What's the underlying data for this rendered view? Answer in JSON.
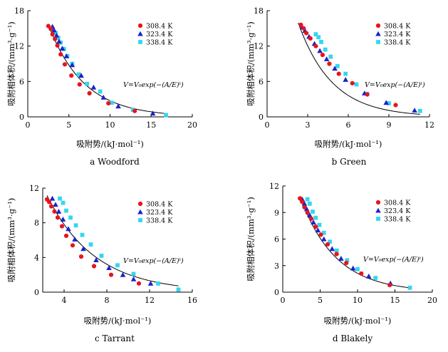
{
  "figure": {
    "ylabel": "吸附相体积/(mm³·g⁻¹)",
    "xlabel": "吸附势/(kJ·mol⁻¹)",
    "equation": "V=V₀exp(−(A/E)ᵗ)",
    "legend": [
      "308.4 K",
      "323.4 K",
      "338.4 K"
    ],
    "series_colors": {
      "308.4 K": "#e8141b",
      "323.4 K": "#1a23c8",
      "338.4 K": "#35d6f0"
    },
    "fit_color": "#000000"
  },
  "chart_data": [
    {
      "type": "scatter",
      "caption": "a  Woodford",
      "xlabel": "吸附势/(kJ·mol⁻¹)",
      "ylabel": "吸附相体积/(mm³·g⁻¹)",
      "xlim": [
        0,
        20
      ],
      "ylim": [
        0,
        18
      ],
      "xticks": [
        0,
        5,
        10,
        15,
        20
      ],
      "yticks": [
        0,
        6,
        12,
        18
      ],
      "xtick_labels": [
        "0",
        "5",
        "10",
        "15",
        "20"
      ],
      "ytick_labels": [
        "0",
        "6",
        "12",
        "18"
      ],
      "fit": {
        "V0": 28.0,
        "E": 4.3,
        "t": 1.0,
        "x_start": 2.5,
        "x_end": 17.0
      },
      "series": [
        {
          "name": "308.4 K",
          "marker": "circle",
          "x": [
            2.5,
            2.8,
            3.0,
            3.3,
            3.6,
            4.0,
            4.5,
            5.3,
            6.3,
            7.5,
            9.8,
            13.0
          ],
          "y": [
            15.4,
            14.9,
            14.0,
            13.2,
            12.1,
            10.6,
            8.9,
            7.0,
            5.5,
            4.0,
            2.3,
            1.0
          ]
        },
        {
          "name": "323.4 K",
          "marker": "triangle",
          "x": [
            3.0,
            3.2,
            3.5,
            3.8,
            4.2,
            4.7,
            5.4,
            6.5,
            8.0,
            9.2,
            11.0,
            15.2
          ],
          "y": [
            15.3,
            14.7,
            13.8,
            12.8,
            11.6,
            10.3,
            8.8,
            7.0,
            5.0,
            3.3,
            1.8,
            0.6
          ]
        },
        {
          "name": "338.4 K",
          "marker": "square",
          "x": [
            3.4,
            3.7,
            4.0,
            4.4,
            4.8,
            5.4,
            6.2,
            7.2,
            8.8,
            10.2,
            12.8,
            16.8
          ],
          "y": [
            14.2,
            13.4,
            12.6,
            11.5,
            10.3,
            9.0,
            7.2,
            5.6,
            4.3,
            2.4,
            1.2,
            0.3
          ]
        }
      ]
    },
    {
      "type": "scatter",
      "caption": "b  Green",
      "xlabel": "吸附势/(kJ·mol⁻¹)",
      "ylabel": "吸附相体积/(mm³·g⁻¹)",
      "xlim": [
        0,
        12
      ],
      "ylim": [
        0,
        18
      ],
      "xticks": [
        0,
        3,
        6,
        9,
        12
      ],
      "yticks": [
        0,
        6,
        12,
        18
      ],
      "xtick_labels": [
        "0",
        "3",
        "6",
        "9",
        "12"
      ],
      "ytick_labels": [
        "0",
        "6",
        "12",
        "18"
      ],
      "fit": {
        "V0": 40.0,
        "E": 2.5,
        "t": 1.0,
        "x_start": 2.3,
        "x_end": 11.3
      },
      "series": [
        {
          "name": "308.4 K",
          "marker": "circle",
          "x": [
            2.5,
            2.7,
            2.9,
            3.2,
            3.6,
            4.1,
            4.6,
            5.3,
            6.3,
            7.4,
            9.5
          ],
          "y": [
            15.6,
            15.0,
            14.2,
            13.3,
            12.0,
            10.5,
            9.0,
            7.3,
            5.7,
            3.8,
            2.0
          ]
        },
        {
          "name": "323.4 K",
          "marker": "triangle",
          "x": [
            2.6,
            2.8,
            3.1,
            3.5,
            3.9,
            4.4,
            5.0,
            5.8,
            7.2,
            8.8,
            10.9
          ],
          "y": [
            15.2,
            14.6,
            13.6,
            12.4,
            11.2,
            9.8,
            8.2,
            6.3,
            4.0,
            2.4,
            1.1
          ]
        },
        {
          "name": "338.4 K",
          "marker": "square",
          "x": [
            3.6,
            3.8,
            4.0,
            4.3,
            4.7,
            5.2,
            5.8,
            6.6,
            7.4,
            9.0,
            11.3
          ],
          "y": [
            14.0,
            13.5,
            12.7,
            11.4,
            10.2,
            8.6,
            7.3,
            5.5,
            3.9,
            2.3,
            1.0
          ]
        }
      ]
    },
    {
      "type": "scatter",
      "caption": "c  Tarrant",
      "xlabel": "吸附势/(kJ·mol⁻¹)",
      "ylabel": "吸附相体积/(mm³·g⁻¹)",
      "xlim": [
        2,
        16
      ],
      "ylim": [
        0,
        12
      ],
      "xticks": [
        4,
        8,
        12,
        16
      ],
      "yticks": [
        0,
        4,
        8,
        12
      ],
      "xtick_labels": [
        "4",
        "8",
        "12",
        "16"
      ],
      "ytick_labels": [
        "0",
        "4",
        "8",
        "12"
      ],
      "fit": {
        "V0": 19.0,
        "E": 4.5,
        "t": 1.0,
        "x_start": 2.4,
        "x_end": 14.7
      },
      "series": [
        {
          "name": "308.4 K",
          "marker": "circle",
          "x": [
            2.4,
            2.6,
            2.8,
            3.1,
            3.4,
            3.8,
            4.2,
            4.8,
            5.6,
            6.8,
            8.4,
            11.0
          ],
          "y": [
            10.7,
            10.4,
            9.9,
            9.3,
            8.6,
            7.6,
            6.5,
            5.4,
            4.1,
            3.0,
            2.0,
            1.0
          ]
        },
        {
          "name": "323.4 K",
          "marker": "triangle",
          "x": [
            2.9,
            3.2,
            3.5,
            3.9,
            4.4,
            5.0,
            5.8,
            7.0,
            8.2,
            9.5,
            10.5,
            12.1
          ],
          "y": [
            10.8,
            10.1,
            9.3,
            8.4,
            7.3,
            6.1,
            5.0,
            3.7,
            2.8,
            2.0,
            1.5,
            1.0
          ]
        },
        {
          "name": "338.4 K",
          "marker": "square",
          "x": [
            3.6,
            3.9,
            4.2,
            4.6,
            5.1,
            5.7,
            6.5,
            7.5,
            9.0,
            10.5,
            12.8,
            14.7
          ],
          "y": [
            10.8,
            10.3,
            9.4,
            8.6,
            7.7,
            6.6,
            5.5,
            4.2,
            3.1,
            2.1,
            1.0,
            0.3
          ]
        }
      ]
    },
    {
      "type": "scatter",
      "caption": "d  Blakely",
      "xlabel": "吸附势/(kJ·mol⁻¹)",
      "ylabel": "吸附相体积/(mm³·g⁻¹)",
      "xlim": [
        0,
        20
      ],
      "ylim": [
        0,
        12
      ],
      "xticks": [
        0,
        5,
        10,
        15,
        20
      ],
      "yticks": [
        0,
        3,
        6,
        9,
        12
      ],
      "xtick_labels": [
        "0",
        "5",
        "10",
        "15",
        "20"
      ],
      "ytick_labels": [
        "0",
        "3",
        "6",
        "9",
        "12"
      ],
      "fit": {
        "V0": 17.5,
        "E": 4.75,
        "t": 1.0,
        "x_start": 2.3,
        "x_end": 17.0
      },
      "series": [
        {
          "name": "308.4 K",
          "marker": "circle",
          "x": [
            2.3,
            2.6,
            2.9,
            3.3,
            3.8,
            4.4,
            5.1,
            6.0,
            7.2,
            8.5,
            10.5,
            14.3
          ],
          "y": [
            10.6,
            10.2,
            9.6,
            9.0,
            8.3,
            7.4,
            6.5,
            5.4,
            4.3,
            3.3,
            2.1,
            0.8
          ]
        },
        {
          "name": "323.4 K",
          "marker": "triangle",
          "x": [
            2.6,
            2.9,
            3.2,
            3.6,
            4.1,
            4.7,
            5.5,
            6.6,
            7.8,
            9.4,
            11.5,
            14.4
          ],
          "y": [
            10.5,
            10.0,
            9.4,
            8.7,
            7.9,
            7.0,
            6.0,
            4.9,
            3.8,
            2.7,
            1.8,
            1.0
          ]
        },
        {
          "name": "338.4 K",
          "marker": "square",
          "x": [
            3.3,
            3.6,
            4.0,
            4.4,
            4.9,
            5.5,
            6.3,
            7.2,
            8.6,
            10.0,
            12.4,
            17.0
          ],
          "y": [
            10.5,
            10.0,
            9.1,
            8.4,
            7.6,
            6.7,
            5.7,
            4.7,
            3.6,
            2.6,
            1.6,
            0.5
          ]
        }
      ]
    }
  ]
}
